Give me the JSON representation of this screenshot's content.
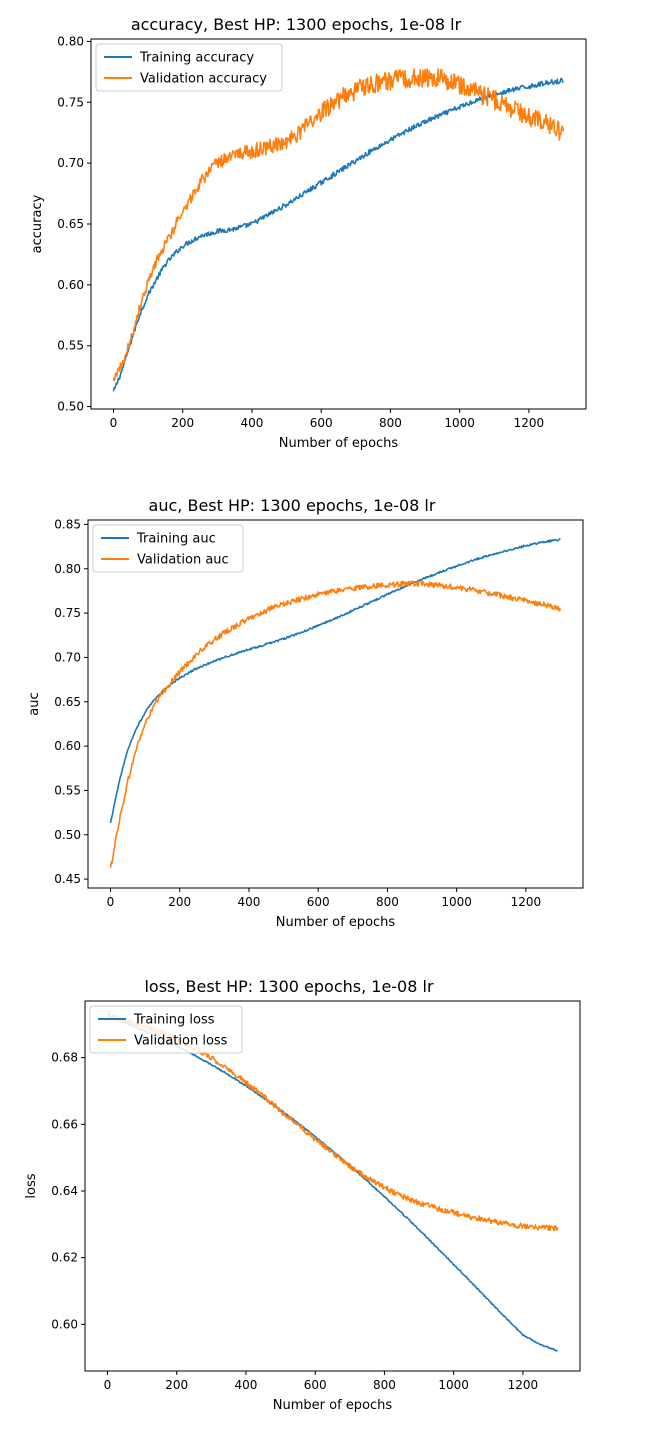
{
  "colors": {
    "training": "#1f77b4",
    "validation": "#ff7f0e"
  },
  "chart_data": [
    {
      "type": "line",
      "title": "accuracy, Best HP: 1300 epochs, 1e-08 lr",
      "xlabel": "Number of epochs",
      "ylabel": "accuracy",
      "xlim": [
        -65,
        1365
      ],
      "ylim": [
        0.498,
        0.802
      ],
      "xticks": [
        0,
        200,
        400,
        600,
        800,
        1000,
        1200
      ],
      "yticks": [
        0.5,
        0.55,
        0.6,
        0.65,
        0.7,
        0.75,
        0.8
      ],
      "ytick_labels": [
        "0.50",
        "0.55",
        "0.60",
        "0.65",
        "0.70",
        "0.75",
        "0.80"
      ],
      "legend": "top-left",
      "series": [
        {
          "name": "Training accuracy",
          "color_key": "training",
          "x": [
            0,
            25,
            50,
            75,
            100,
            125,
            150,
            175,
            200,
            250,
            300,
            350,
            400,
            450,
            500,
            550,
            600,
            650,
            700,
            750,
            800,
            850,
            900,
            950,
            1000,
            1050,
            1100,
            1150,
            1200,
            1250,
            1300
          ],
          "y": [
            0.512,
            0.53,
            0.553,
            0.575,
            0.592,
            0.605,
            0.617,
            0.625,
            0.632,
            0.64,
            0.644,
            0.646,
            0.65,
            0.658,
            0.666,
            0.675,
            0.684,
            0.693,
            0.702,
            0.711,
            0.719,
            0.727,
            0.734,
            0.74,
            0.746,
            0.752,
            0.756,
            0.76,
            0.763,
            0.766,
            0.768
          ],
          "noise": 0.002
        },
        {
          "name": "Validation accuracy",
          "color_key": "validation",
          "x": [
            0,
            25,
            50,
            75,
            100,
            125,
            150,
            175,
            200,
            250,
            300,
            350,
            400,
            450,
            500,
            550,
            600,
            650,
            700,
            750,
            800,
            850,
            900,
            950,
            1000,
            1050,
            1100,
            1150,
            1200,
            1250,
            1300
          ],
          "y": [
            0.523,
            0.535,
            0.555,
            0.58,
            0.602,
            0.62,
            0.634,
            0.647,
            0.66,
            0.684,
            0.7,
            0.707,
            0.71,
            0.713,
            0.718,
            0.728,
            0.742,
            0.752,
            0.76,
            0.765,
            0.768,
            0.769,
            0.771,
            0.769,
            0.764,
            0.758,
            0.752,
            0.745,
            0.738,
            0.732,
            0.725
          ],
          "noise": 0.008
        }
      ]
    },
    {
      "type": "line",
      "title": "auc, Best HP: 1300 epochs, 1e-08 lr",
      "xlabel": "Number of epochs",
      "ylabel": "auc",
      "xlim": [
        -65,
        1365
      ],
      "ylim": [
        0.44,
        0.855
      ],
      "xticks": [
        0,
        200,
        400,
        600,
        800,
        1000,
        1200
      ],
      "yticks": [
        0.45,
        0.5,
        0.55,
        0.6,
        0.65,
        0.7,
        0.75,
        0.8,
        0.85
      ],
      "ytick_labels": [
        "0.45",
        "0.50",
        "0.55",
        "0.60",
        "0.65",
        "0.70",
        "0.75",
        "0.80",
        "0.85"
      ],
      "legend": "top-left",
      "series": [
        {
          "name": "Training auc",
          "color_key": "training",
          "x": [
            0,
            25,
            50,
            75,
            100,
            125,
            150,
            175,
            200,
            250,
            300,
            350,
            400,
            450,
            500,
            550,
            600,
            650,
            700,
            750,
            800,
            850,
            900,
            950,
            1000,
            1050,
            1100,
            1150,
            1200,
            1250,
            1300
          ],
          "y": [
            0.513,
            0.56,
            0.596,
            0.62,
            0.638,
            0.652,
            0.662,
            0.67,
            0.677,
            0.688,
            0.696,
            0.703,
            0.709,
            0.715,
            0.721,
            0.728,
            0.736,
            0.744,
            0.753,
            0.762,
            0.771,
            0.78,
            0.788,
            0.796,
            0.803,
            0.81,
            0.816,
            0.821,
            0.826,
            0.83,
            0.833
          ],
          "noise": 0.001
        },
        {
          "name": "Validation auc",
          "color_key": "validation",
          "x": [
            0,
            25,
            50,
            75,
            100,
            125,
            150,
            175,
            200,
            250,
            300,
            350,
            400,
            450,
            500,
            550,
            600,
            650,
            700,
            750,
            800,
            850,
            900,
            950,
            1000,
            1050,
            1100,
            1150,
            1200,
            1250,
            1300
          ],
          "y": [
            0.462,
            0.515,
            0.56,
            0.598,
            0.625,
            0.645,
            0.66,
            0.672,
            0.684,
            0.704,
            0.72,
            0.733,
            0.744,
            0.753,
            0.76,
            0.766,
            0.771,
            0.775,
            0.778,
            0.78,
            0.782,
            0.783,
            0.783,
            0.781,
            0.779,
            0.776,
            0.772,
            0.768,
            0.764,
            0.76,
            0.755
          ],
          "noise": 0.003
        }
      ]
    },
    {
      "type": "line",
      "title": "loss, Best HP: 1300 epochs, 1e-08 lr",
      "xlabel": "Number of epochs",
      "ylabel": "loss",
      "xlim": [
        -65,
        1365
      ],
      "ylim": [
        0.586,
        0.697
      ],
      "xticks": [
        0,
        200,
        400,
        600,
        800,
        1000,
        1200
      ],
      "yticks": [
        0.6,
        0.62,
        0.64,
        0.66,
        0.68
      ],
      "ytick_labels": [
        "0.60",
        "0.62",
        "0.64",
        "0.66",
        "0.68"
      ],
      "legend": "top-left",
      "series": [
        {
          "name": "Training loss",
          "color_key": "training",
          "x": [
            0,
            50,
            100,
            150,
            200,
            250,
            300,
            350,
            400,
            450,
            500,
            550,
            600,
            650,
            700,
            750,
            800,
            850,
            900,
            950,
            1000,
            1050,
            1100,
            1150,
            1200,
            1250,
            1300
          ],
          "y": [
            0.6925,
            0.6905,
            0.6883,
            0.686,
            0.6835,
            0.6808,
            0.6779,
            0.6748,
            0.6715,
            0.668,
            0.6643,
            0.6604,
            0.6563,
            0.652,
            0.6476,
            0.643,
            0.6383,
            0.6334,
            0.6284,
            0.6232,
            0.618,
            0.6127,
            0.6073,
            0.602,
            0.5968,
            0.594,
            0.592
          ],
          "noise": 0.0002
        },
        {
          "name": "Validation loss",
          "color_key": "validation",
          "x": [
            0,
            50,
            100,
            150,
            200,
            250,
            300,
            350,
            400,
            450,
            500,
            550,
            600,
            650,
            700,
            750,
            800,
            850,
            900,
            950,
            1000,
            1050,
            1100,
            1150,
            1200,
            1250,
            1300
          ],
          "y": [
            0.6928,
            0.6912,
            0.6895,
            0.6877,
            0.6855,
            0.683,
            0.68,
            0.6765,
            0.6725,
            0.6685,
            0.664,
            0.66,
            0.6555,
            0.6515,
            0.6475,
            0.644,
            0.641,
            0.6385,
            0.6365,
            0.6348,
            0.6335,
            0.6322,
            0.6312,
            0.6302,
            0.6295,
            0.629,
            0.6288
          ],
          "noise": 0.0008
        }
      ]
    }
  ]
}
